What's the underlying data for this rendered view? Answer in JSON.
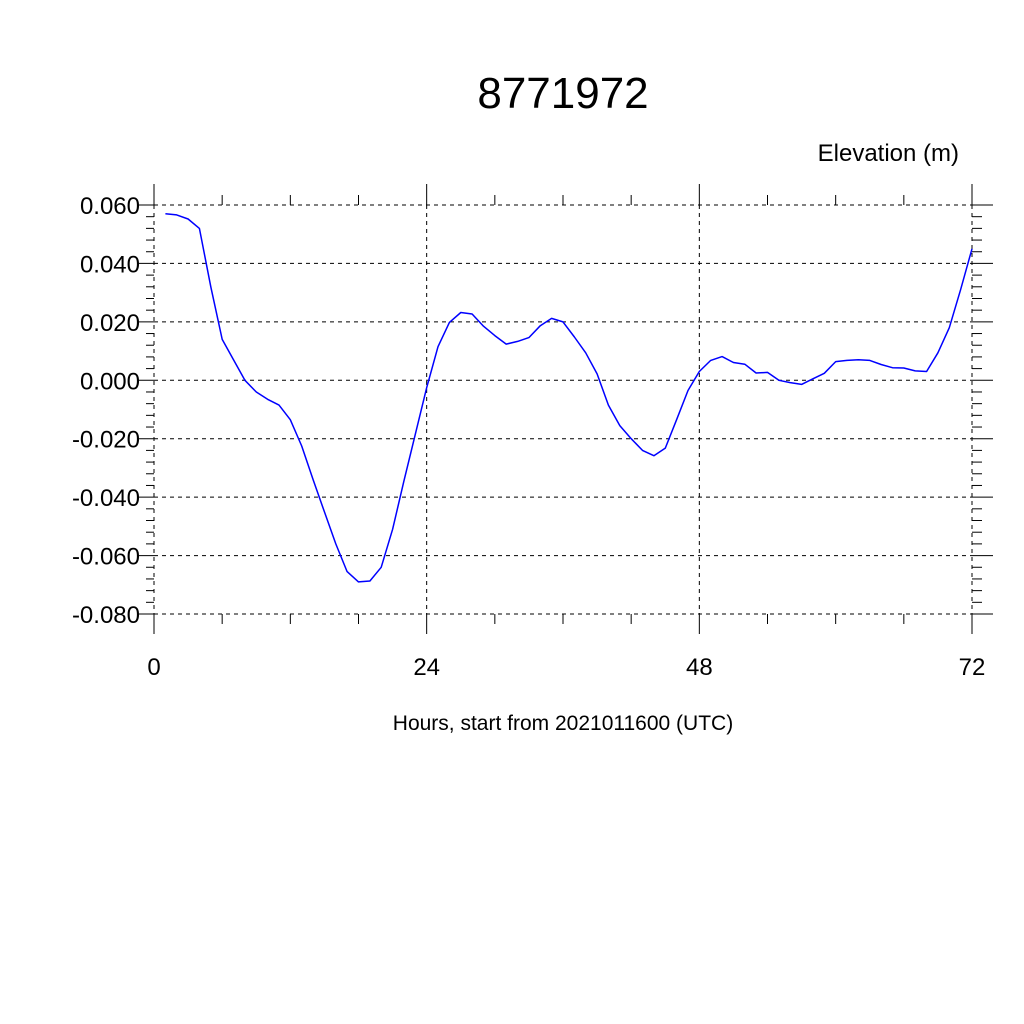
{
  "chart_data": {
    "type": "line",
    "title": "8771972",
    "units_label": "Elevation (m)",
    "xlabel": "Hours, start from 2021011600 (UTC)",
    "xlim": [
      0,
      72
    ],
    "ylim": [
      -0.08,
      0.06
    ],
    "x_major_ticks": [
      0,
      24,
      48,
      72
    ],
    "x_major_tick_labels": [
      "0",
      "24",
      "48",
      "72"
    ],
    "y_major_ticks": [
      0.06,
      0.04,
      0.02,
      0.0,
      -0.02,
      -0.04,
      -0.06,
      -0.08
    ],
    "y_major_tick_labels": [
      "0.060",
      "0.040",
      "0.020",
      "0.000",
      "-0.020",
      "-0.040",
      "-0.060",
      "-0.080"
    ],
    "grid": true,
    "line_color": "#0000ff",
    "series": [
      {
        "x": [
          1,
          2,
          3,
          4,
          5,
          6,
          7,
          8,
          9,
          10,
          11,
          12,
          13,
          14,
          15,
          16,
          17,
          18,
          19,
          20,
          21,
          22,
          23,
          24,
          25,
          26,
          27,
          28,
          29,
          30,
          31,
          32,
          33,
          34,
          35,
          36,
          37,
          38,
          39,
          40,
          41,
          42,
          43,
          44,
          45,
          46,
          47,
          48,
          49,
          50,
          51,
          52,
          53,
          54,
          55,
          56,
          57,
          58,
          59,
          60,
          61,
          62,
          63,
          64,
          65,
          66,
          67,
          68,
          69,
          70,
          71,
          72
        ],
        "y": [
          0.057,
          0.0566,
          0.0552,
          0.052,
          0.032,
          0.014,
          0.007,
          0.0,
          -0.004,
          -0.0065,
          -0.0085,
          -0.0135,
          -0.0225,
          -0.034,
          -0.045,
          -0.056,
          -0.0655,
          -0.069,
          -0.0687,
          -0.064,
          -0.051,
          -0.0345,
          -0.0185,
          -0.0025,
          0.0115,
          0.0198,
          0.0232,
          0.0227,
          0.0185,
          0.0153,
          0.0124,
          0.0133,
          0.0146,
          0.0187,
          0.0212,
          0.02,
          0.0148,
          0.0094,
          0.0022,
          -0.0085,
          -0.0155,
          -0.02,
          -0.024,
          -0.0258,
          -0.0232,
          -0.0135,
          -0.0035,
          0.003,
          0.0068,
          0.0081,
          0.0061,
          0.0055,
          0.0025,
          0.0027,
          0.0,
          -0.0008,
          -0.0014,
          0.0005,
          0.0024,
          0.0064,
          0.0068,
          0.007,
          0.0068,
          0.0054,
          0.0043,
          0.0042,
          0.0032,
          0.003,
          0.0094,
          0.018,
          0.031,
          0.045
        ]
      }
    ]
  }
}
